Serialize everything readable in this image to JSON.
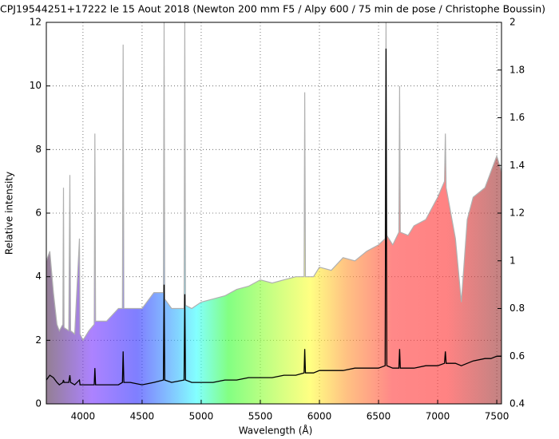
{
  "chart_data": {
    "type": "line",
    "title": "CPJ19544251+17222  le 15 Aout 2018 (Newton 200 mm F5 / Alpy 600 / 75 min de pose / Christophe Boussin)",
    "xlabel": "Wavelength (Å)",
    "ylabel": "Relative intensity",
    "x": [
      3690,
      3720,
      3750,
      3780,
      3800,
      3830,
      3835,
      3840,
      3880,
      3889,
      3895,
      3930,
      3970,
      3975,
      4000,
      4050,
      4095,
      4101,
      4107,
      4200,
      4300,
      4334,
      4340,
      4346,
      4400,
      4500,
      4600,
      4680,
      4686,
      4692,
      4750,
      4855,
      4861,
      4867,
      4920,
      5000,
      5100,
      5200,
      5300,
      5400,
      5500,
      5600,
      5700,
      5800,
      5870,
      5876,
      5882,
      5950,
      6000,
      6100,
      6200,
      6300,
      6400,
      6500,
      6556,
      6563,
      6570,
      6620,
      6672,
      6678,
      6684,
      6750,
      6800,
      6900,
      7000,
      7058,
      7065,
      7072,
      7150,
      7200,
      7250,
      7300,
      7400,
      7450,
      7500,
      7540
    ],
    "series": [
      {
        "color": "#b0b0b0",
        "fill": true,
        "values": [
          4.5,
          4.8,
          3.5,
          2.5,
          2.3,
          2.5,
          6.8,
          2.4,
          2.3,
          7.2,
          2.3,
          2.2,
          5.2,
          2.2,
          2.0,
          2.3,
          2.5,
          8.5,
          2.6,
          2.6,
          3.0,
          3.0,
          11.3,
          3.0,
          3.0,
          3.0,
          3.5,
          3.5,
          12,
          3.3,
          3.0,
          3.0,
          12,
          3.1,
          3.0,
          3.2,
          3.3,
          3.4,
          3.6,
          3.7,
          3.9,
          3.8,
          3.9,
          4.0,
          4.0,
          9.8,
          4.0,
          4.0,
          4.3,
          4.2,
          4.6,
          4.5,
          4.8,
          5.0,
          5.2,
          12,
          5.3,
          5.0,
          5.4,
          10.0,
          5.4,
          5.3,
          5.6,
          5.8,
          6.5,
          7.0,
          8.5,
          6.8,
          5.2,
          3.2,
          5.8,
          6.5,
          6.8,
          7.3,
          7.8,
          7.3
        ]
      },
      {
        "color": "#000000",
        "axis": "y2",
        "values": [
          0.5,
          0.52,
          0.51,
          0.49,
          0.48,
          0.49,
          0.5,
          0.49,
          0.49,
          0.52,
          0.49,
          0.48,
          0.5,
          0.48,
          0.48,
          0.48,
          0.48,
          0.55,
          0.48,
          0.48,
          0.48,
          0.49,
          0.62,
          0.49,
          0.49,
          0.48,
          0.49,
          0.5,
          0.9,
          0.5,
          0.49,
          0.5,
          0.86,
          0.5,
          0.49,
          0.49,
          0.49,
          0.5,
          0.5,
          0.51,
          0.51,
          0.51,
          0.52,
          0.52,
          0.53,
          0.63,
          0.53,
          0.53,
          0.54,
          0.54,
          0.54,
          0.55,
          0.55,
          0.55,
          0.56,
          1.89,
          0.56,
          0.55,
          0.55,
          0.63,
          0.55,
          0.55,
          0.55,
          0.56,
          0.56,
          0.57,
          0.62,
          0.57,
          0.57,
          0.56,
          0.57,
          0.58,
          0.59,
          0.59,
          0.6,
          0.6
        ]
      }
    ],
    "xlim": [
      3690,
      7540
    ],
    "xticks": [
      4000,
      4500,
      5000,
      5500,
      6000,
      6500,
      7000,
      7500
    ],
    "ylim": [
      0,
      12
    ],
    "yticks": [
      0,
      2,
      4,
      6,
      8,
      10,
      12
    ],
    "y2lim": [
      0.4,
      2
    ],
    "y2ticks": [
      0.4,
      0.6,
      0.8,
      1,
      1.2,
      1.4,
      1.6,
      1.8,
      2
    ],
    "grid": true
  }
}
